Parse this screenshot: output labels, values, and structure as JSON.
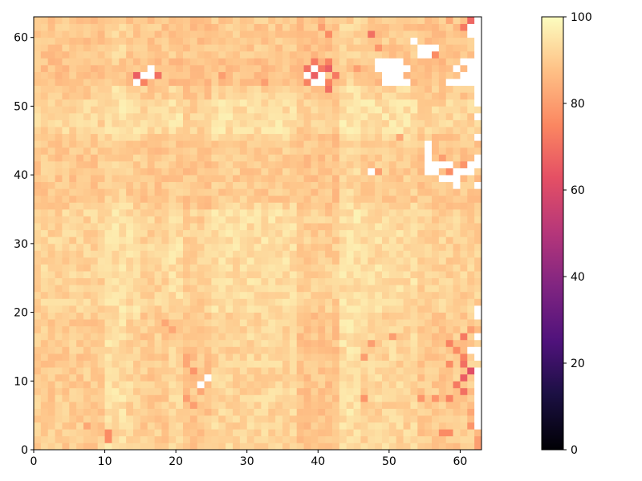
{
  "chart_data": {
    "type": "heatmap",
    "title": "",
    "xlabel": "",
    "ylabel": "",
    "grid_size": [
      63,
      63
    ],
    "xlim": [
      0,
      63
    ],
    "ylim": [
      0,
      63
    ],
    "x_ticks": [
      0,
      10,
      20,
      30,
      40,
      50,
      60
    ],
    "y_ticks": [
      0,
      10,
      20,
      30,
      40,
      50,
      60
    ],
    "colormap": "magma",
    "colorbar": {
      "min": 0,
      "max": 100,
      "ticks": [
        0,
        20,
        40,
        60,
        80,
        100
      ]
    },
    "background_value": 92,
    "missing_color": "#ffffff",
    "bands": [
      {
        "axis": "col",
        "range": [
          0,
          9
        ],
        "value": 88
      },
      {
        "axis": "col",
        "range": [
          10,
          12
        ],
        "value": 95
      },
      {
        "axis": "col",
        "range": [
          15,
          18
        ],
        "value": 88
      },
      {
        "axis": "col",
        "range": [
          21,
          24
        ],
        "value": 86
      },
      {
        "axis": "col",
        "range": [
          37,
          42
        ],
        "value": 85
      },
      {
        "axis": "col",
        "range": [
          43,
          45
        ],
        "value": 96
      },
      {
        "axis": "col",
        "range": [
          54,
          62
        ],
        "value": 87
      },
      {
        "axis": "row",
        "range": [
          53,
          56
        ],
        "value": 84
      },
      {
        "axis": "row",
        "range": [
          36,
          44
        ],
        "value": 88
      },
      {
        "axis": "row",
        "range": [
          46,
          50
        ],
        "value": 96
      },
      {
        "axis": "row",
        "range": [
          20,
          34
        ],
        "value": 95
      },
      {
        "axis": "row",
        "range": [
          57,
          62
        ],
        "value": 87
      }
    ],
    "hotspots": [
      [
        1,
        10,
        76
      ],
      [
        2,
        10,
        76
      ],
      [
        3,
        7,
        82
      ],
      [
        1,
        62,
        80
      ],
      [
        2,
        57,
        76
      ],
      [
        2,
        58,
        76
      ],
      [
        3,
        61,
        78
      ],
      [
        0,
        62,
        80
      ],
      [
        5,
        61,
        82
      ],
      [
        7,
        46,
        78
      ],
      [
        7,
        54,
        78
      ],
      [
        7,
        56,
        78
      ],
      [
        7,
        58,
        74
      ],
      [
        8,
        60,
        70
      ],
      [
        9,
        59,
        72
      ],
      [
        10,
        60,
        66
      ],
      [
        11,
        61,
        62
      ],
      [
        12,
        60,
        70
      ],
      [
        12,
        58,
        76
      ],
      [
        13,
        60,
        74
      ],
      [
        14,
        59,
        76
      ],
      [
        15,
        58,
        74
      ],
      [
        16,
        60,
        72
      ],
      [
        17,
        61,
        80
      ],
      [
        13,
        46,
        80
      ],
      [
        15,
        47,
        80
      ],
      [
        16,
        50,
        80
      ],
      [
        6,
        22,
        80
      ],
      [
        7,
        21,
        80
      ],
      [
        8,
        23,
        82
      ],
      [
        11,
        22,
        78
      ],
      [
        12,
        21,
        82
      ],
      [
        13,
        21,
        82
      ],
      [
        18,
        18,
        82
      ],
      [
        17,
        19,
        82
      ],
      [
        54,
        14,
        66
      ],
      [
        53,
        15,
        74
      ],
      [
        54,
        17,
        70
      ],
      [
        55,
        16,
        74
      ],
      [
        55,
        38,
        70
      ],
      [
        54,
        39,
        66
      ],
      [
        55,
        40,
        72
      ],
      [
        53,
        41,
        74
      ],
      [
        52,
        41,
        70
      ],
      [
        55,
        41,
        66
      ],
      [
        54,
        42,
        72
      ],
      [
        56,
        39,
        72
      ],
      [
        53,
        38,
        74
      ],
      [
        56,
        41,
        74
      ],
      [
        60,
        41,
        76
      ],
      [
        60,
        47,
        70
      ],
      [
        61,
        40,
        80
      ],
      [
        58,
        48,
        78
      ],
      [
        54,
        26,
        80
      ],
      [
        53,
        32,
        80
      ],
      [
        55,
        45,
        80
      ],
      [
        57,
        56,
        76
      ],
      [
        56,
        62,
        80
      ],
      [
        62,
        61,
        68
      ],
      [
        61,
        60,
        72
      ],
      [
        62,
        58,
        82
      ],
      [
        40,
        48,
        80
      ],
      [
        41,
        56,
        78
      ],
      [
        40,
        59,
        78
      ],
      [
        39,
        57,
        80
      ],
      [
        42,
        57,
        80
      ],
      [
        41,
        60,
        78
      ],
      [
        45,
        51,
        82
      ],
      [
        40,
        58,
        76
      ]
    ],
    "missing_cells": [
      [
        9,
        23
      ],
      [
        10,
        24
      ],
      [
        3,
        62
      ],
      [
        4,
        62
      ],
      [
        5,
        62
      ],
      [
        6,
        62
      ],
      [
        7,
        62
      ],
      [
        8,
        62
      ],
      [
        9,
        62
      ],
      [
        10,
        62
      ],
      [
        11,
        62
      ],
      [
        13,
        62
      ],
      [
        14,
        62
      ],
      [
        16,
        62
      ],
      [
        19,
        62
      ],
      [
        20,
        62
      ],
      [
        38,
        62
      ],
      [
        41,
        62
      ],
      [
        42,
        62
      ],
      [
        45,
        62
      ],
      [
        48,
        62
      ],
      [
        50,
        62
      ],
      [
        51,
        62
      ],
      [
        52,
        62
      ],
      [
        53,
        62
      ],
      [
        54,
        62
      ],
      [
        55,
        62
      ],
      [
        56,
        62
      ],
      [
        57,
        62
      ],
      [
        58,
        62
      ],
      [
        59,
        62
      ],
      [
        60,
        62
      ],
      [
        61,
        62
      ],
      [
        62,
        62
      ],
      [
        14,
        61
      ],
      [
        40,
        61
      ],
      [
        41,
        61
      ],
      [
        53,
        61
      ],
      [
        54,
        61
      ],
      [
        55,
        61
      ],
      [
        56,
        61
      ],
      [
        60,
        61
      ],
      [
        61,
        61
      ],
      [
        54,
        60
      ],
      [
        53,
        59
      ],
      [
        53,
        58
      ],
      [
        55,
        59
      ],
      [
        56,
        60
      ],
      [
        53,
        60
      ],
      [
        40,
        47
      ],
      [
        40,
        55
      ],
      [
        41,
        55
      ],
      [
        42,
        55
      ],
      [
        43,
        55
      ],
      [
        44,
        55
      ],
      [
        59,
        53
      ],
      [
        58,
        54
      ],
      [
        58,
        55
      ],
      [
        57,
        55
      ],
      [
        54,
        49
      ],
      [
        55,
        49
      ],
      [
        56,
        49
      ],
      [
        53,
        49
      ],
      [
        53,
        50
      ],
      [
        54,
        50
      ],
      [
        55,
        50
      ],
      [
        56,
        50
      ],
      [
        53,
        51
      ],
      [
        54,
        51
      ],
      [
        55,
        51
      ],
      [
        56,
        51
      ],
      [
        53,
        52
      ],
      [
        55,
        52
      ],
      [
        56,
        48
      ],
      [
        55,
        48
      ],
      [
        54,
        40
      ],
      [
        55,
        39
      ],
      [
        54,
        38
      ],
      [
        53,
        40
      ],
      [
        53,
        39
      ],
      [
        54,
        16
      ],
      [
        55,
        16
      ],
      [
        53,
        14
      ],
      [
        54,
        15
      ],
      [
        40,
        56
      ],
      [
        41,
        57
      ],
      [
        39,
        58
      ],
      [
        41,
        58
      ],
      [
        38,
        59
      ],
      [
        39,
        59
      ],
      [
        40,
        60
      ],
      [
        40,
        59
      ],
      [
        58,
        56
      ],
      [
        57,
        54
      ],
      [
        41,
        56
      ],
      [
        39,
        57
      ]
    ],
    "seed": 7
  }
}
